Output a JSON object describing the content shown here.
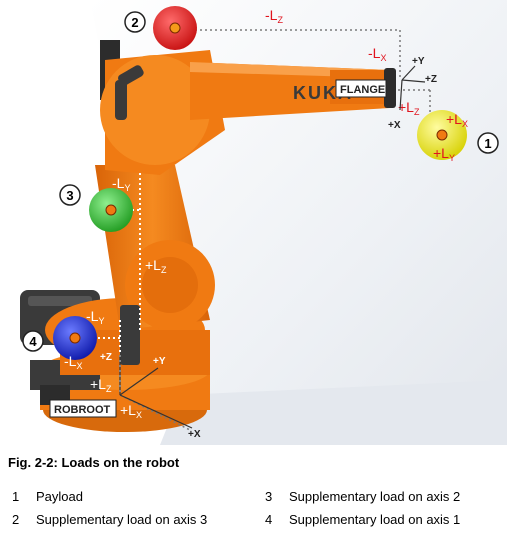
{
  "figure": {
    "markers": [
      "1",
      "2",
      "3",
      "4"
    ],
    "labels": {
      "flange": "FLANGE",
      "robroot": "ROBROOT",
      "brand": "KUKA",
      "top_lz": "-L",
      "top_lz_sub": "Z",
      "top_lx": "-L",
      "top_lx_sub": "X",
      "flange_lz": "+L",
      "flange_lz_sub": "Z",
      "flange_lx": "+L",
      "flange_lx_sub": "X",
      "flange_ly": "+L",
      "flange_ly_sub": "Y",
      "axis3_ly": "-L",
      "axis3_ly_sub": "Y",
      "arm_lz": "+L",
      "arm_lz_sub": "Z",
      "base_ly": "-L",
      "base_ly_sub": "Y",
      "base_lx": "-L",
      "base_lx_sub": "X",
      "root_lz": "+L",
      "root_lz_sub": "Z",
      "root_lx": "+L",
      "root_lx_sub": "X",
      "flange_y": "+Y",
      "flange_z": "+Z",
      "flange_x": "+X",
      "root_z": "+Z",
      "root_y": "+Y",
      "root_x": "+X"
    }
  },
  "caption": "Fig. 2-2: Loads on the robot",
  "legend": [
    {
      "num": "1",
      "text": "Payload"
    },
    {
      "num": "2",
      "text": "Supplementary load on axis 3"
    },
    {
      "num": "3",
      "text": "Supplementary load on axis 2"
    },
    {
      "num": "4",
      "text": "Supplementary load on axis 1"
    }
  ],
  "colors": {
    "robot_orange": "#f07a12",
    "robot_orange_dark": "#c95a05",
    "base_gray": "#3a3a3a",
    "load_red": "#e21c1c",
    "load_green": "#2fbf2f",
    "load_blue": "#1a2fd8",
    "load_yellow": "#f2ef1a",
    "label_red": "#e0141e"
  }
}
